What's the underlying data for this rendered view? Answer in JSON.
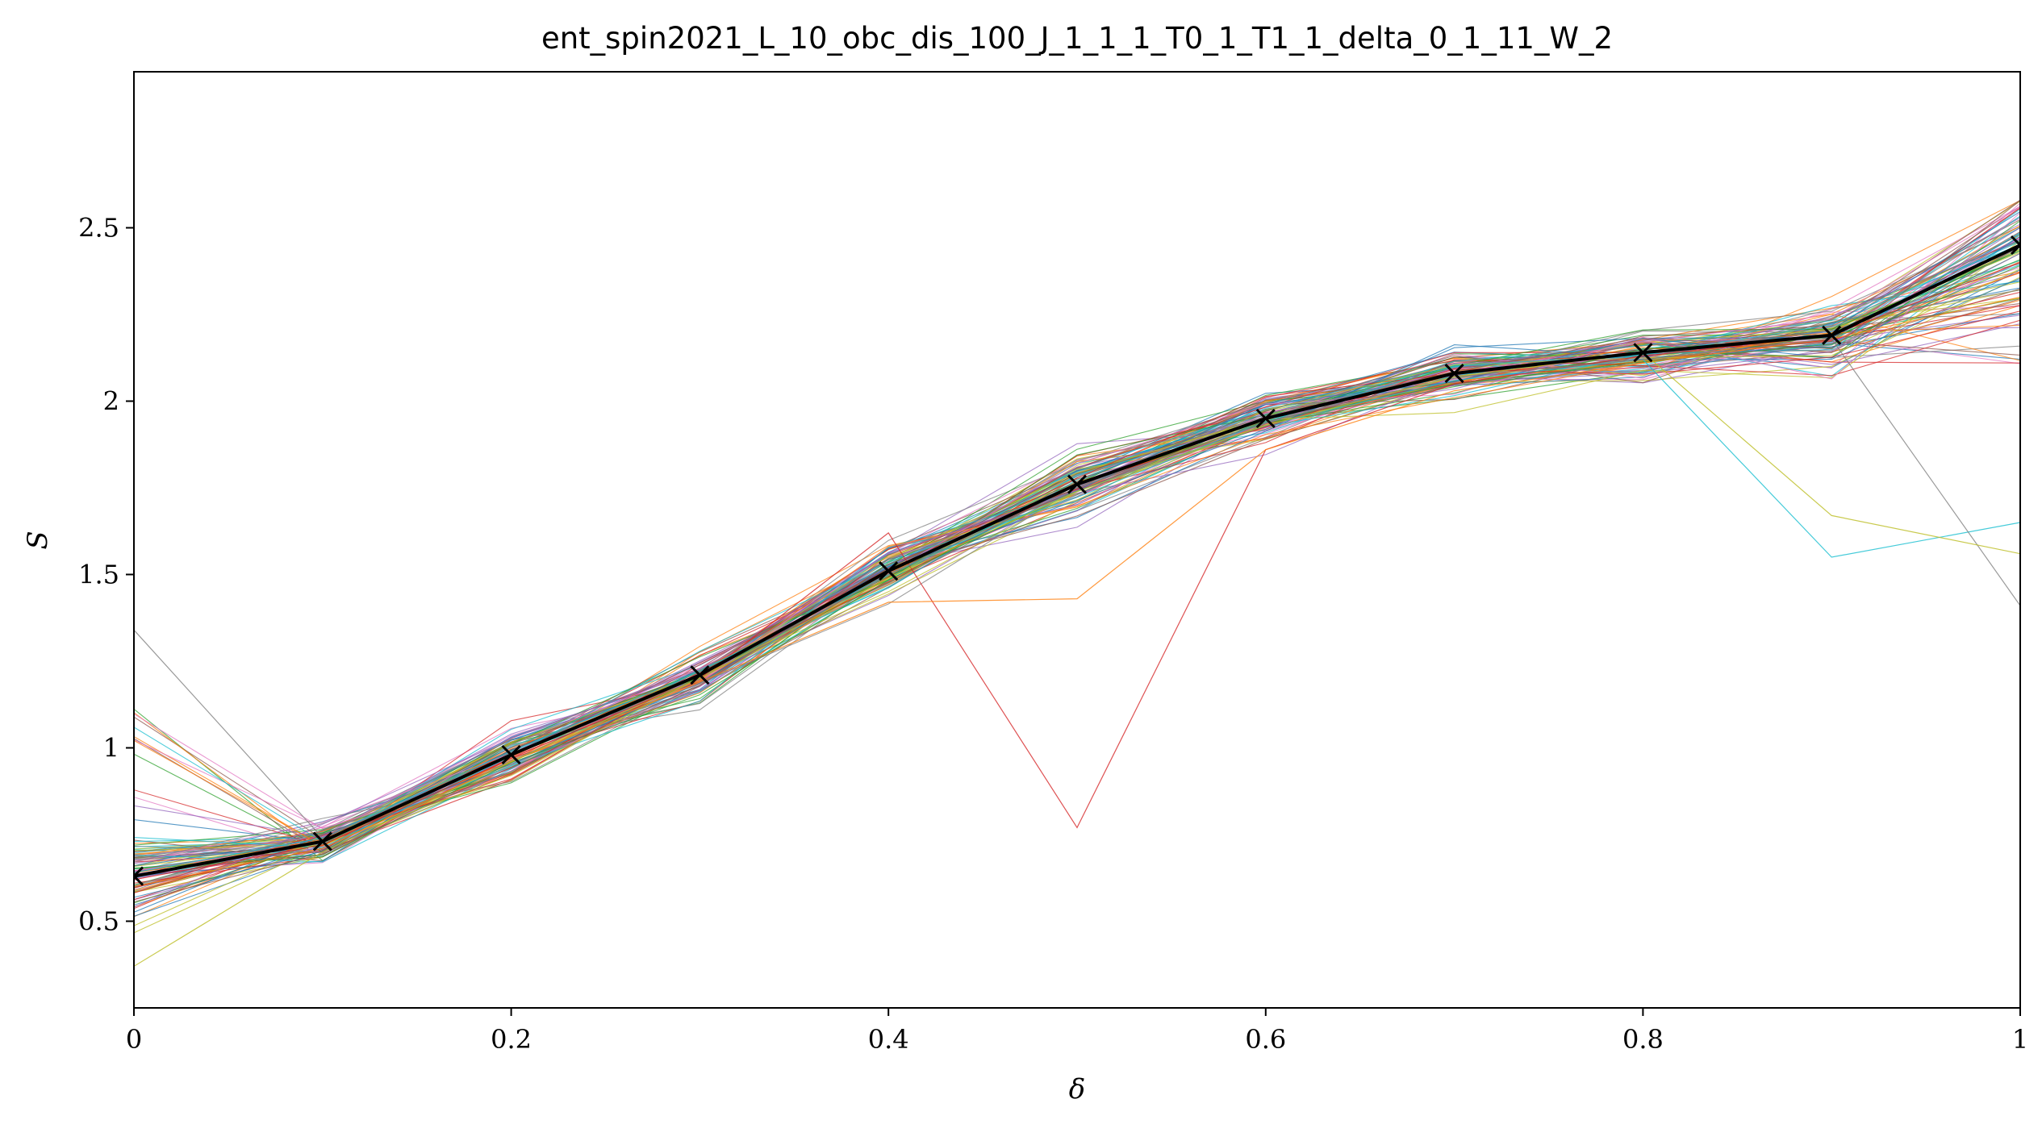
{
  "chart_data": {
    "type": "line",
    "title": "ent_spin2021_L_10_obc_dis_100_J_1_1_1_T0_1_T1_1_delta_0_1_11_W_2",
    "xlabel": "δ",
    "ylabel": "S",
    "xlim": [
      0,
      1
    ],
    "ylim": [
      0.25,
      2.95
    ],
    "x": [
      0,
      0.1,
      0.2,
      0.3,
      0.4,
      0.5,
      0.6,
      0.7,
      0.8,
      0.9,
      1
    ],
    "x_tick_labels": [
      "0",
      "0.2",
      "0.4",
      "0.6",
      "0.8",
      "1"
    ],
    "y_tick_labels": [
      "0.5",
      "1",
      "1.5",
      "2",
      "2.5"
    ],
    "grid": false,
    "legend": "none",
    "mean_series": {
      "color": "#000000",
      "marker": "x",
      "values": [
        0.63,
        0.73,
        0.98,
        1.21,
        1.51,
        1.76,
        1.95,
        2.08,
        2.14,
        2.19,
        2.45
      ]
    },
    "realizations": {
      "count": 100,
      "spread": [
        0.09,
        0.04,
        0.05,
        0.05,
        0.05,
        0.06,
        0.05,
        0.05,
        0.05,
        0.08,
        0.25
      ],
      "outliers": [
        {
          "values": [
            0.62,
            0.72,
            0.97,
            1.2,
            1.62,
            0.77,
            1.86,
            2.05,
            2.13,
            2.19,
            2.4
          ],
          "color": "#d62728"
        },
        {
          "values": [
            0.6,
            0.71,
            0.96,
            1.19,
            1.42,
            1.43,
            1.86,
            2.03,
            2.11,
            2.18,
            2.3
          ],
          "color": "#ff7f0e"
        },
        {
          "values": [
            0.64,
            0.74,
            0.99,
            1.22,
            1.5,
            1.74,
            1.93,
            2.06,
            2.12,
            1.55,
            1.65
          ],
          "color": "#17becf"
        },
        {
          "values": [
            1.34,
            0.74,
            0.98,
            1.2,
            1.5,
            1.75,
            1.94,
            2.07,
            2.12,
            2.18,
            1.41
          ],
          "color": "#7f7f7f"
        },
        {
          "values": [
            0.37,
            0.7,
            0.96,
            1.2,
            1.49,
            1.74,
            1.93,
            2.07,
            2.14,
            1.67,
            1.56
          ],
          "color": "#bcbd22"
        }
      ],
      "colors": [
        "#1f77b4",
        "#ff7f0e",
        "#2ca02c",
        "#d62728",
        "#9467bd",
        "#8c564b",
        "#e377c2",
        "#7f7f7f",
        "#bcbd22",
        "#17becf"
      ]
    }
  }
}
